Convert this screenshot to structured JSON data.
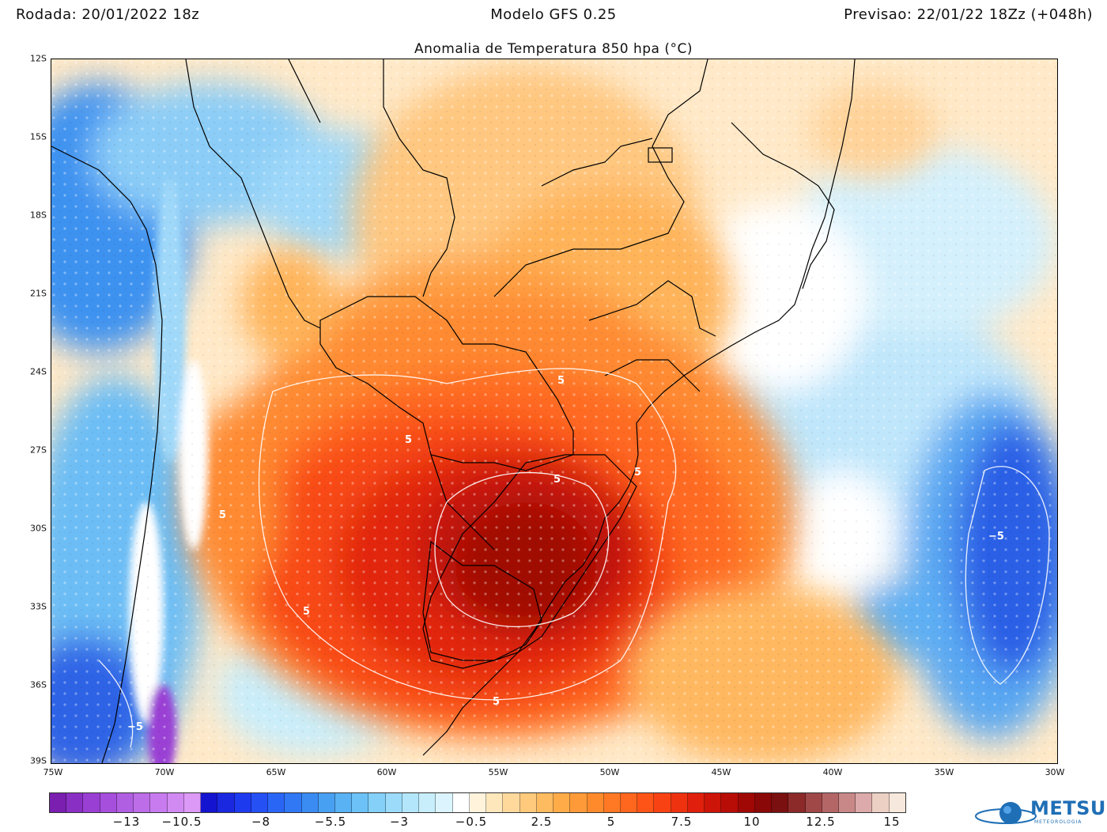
{
  "header": {
    "run": "Rodada: 20/01/2022 18z",
    "model": "Modelo GFS 0.25",
    "forecast": "Previsao: 22/01/22 18Zz (+048h)"
  },
  "subtitle": "Anomalia de Temperatura 850 hpa (°C)",
  "map": {
    "extent": {
      "lon": [
        -75,
        -30
      ],
      "lat": [
        -39,
        -12
      ]
    },
    "lat_ticks": [
      "12S",
      "15S",
      "18S",
      "21S",
      "24S",
      "27S",
      "30S",
      "33S",
      "36S",
      "39S"
    ],
    "lon_ticks": [
      "75W",
      "70W",
      "65W",
      "60W",
      "55W",
      "50W",
      "45W",
      "40W",
      "35W",
      "30W"
    ],
    "contour_labels": [
      "5",
      "5",
      "5",
      "5",
      "5",
      "5",
      "5",
      "−5",
      "−5"
    ],
    "features": {
      "warm_core_max_anomaly_c": 12,
      "warm_core_region": "Rio Grande do Sul / Uruguay",
      "cold_core_min_anomaly_c": -8,
      "cold_core_region": "South Atlantic east of 35W"
    }
  },
  "colorbar": {
    "labels": [
      "−13",
      "−10.5",
      "−8",
      "−5.5",
      "−3",
      "−0.5",
      "2.5",
      "5",
      "7.5",
      "10",
      "12.5",
      "15"
    ],
    "colors": [
      "#7a1fb0",
      "#8a2fc4",
      "#9a3fd4",
      "#a64fdc",
      "#b15fe2",
      "#bd6de8",
      "#c87bef",
      "#d28af3",
      "#dc99f6",
      "#1414d0",
      "#1a28e0",
      "#1e3aef",
      "#2450f4",
      "#2a66f6",
      "#3078f4",
      "#3a8cf2",
      "#48a0f2",
      "#58b2f4",
      "#6cc2f6",
      "#84d0f8",
      "#9cdcfa",
      "#b4e6fb",
      "#c8eefc",
      "#dcf4fd",
      "#ffffff",
      "#fff3dc",
      "#ffe7bc",
      "#ffd99c",
      "#ffca7c",
      "#ffbb60",
      "#ffab48",
      "#ff9a38",
      "#ff8a2c",
      "#ff7824",
      "#ff661e",
      "#ff5418",
      "#f84214",
      "#ee3210",
      "#e0200c",
      "#cc1408",
      "#b80c06",
      "#a00806",
      "#8a0808",
      "#7a1010",
      "#8c2a2a",
      "#a04848",
      "#b46666",
      "#c88888",
      "#dcaaaa",
      "#ecd0c4",
      "#f6e8dc"
    ]
  },
  "logo": {
    "name": "METSUL",
    "sub": "METEOROLOGIA"
  }
}
